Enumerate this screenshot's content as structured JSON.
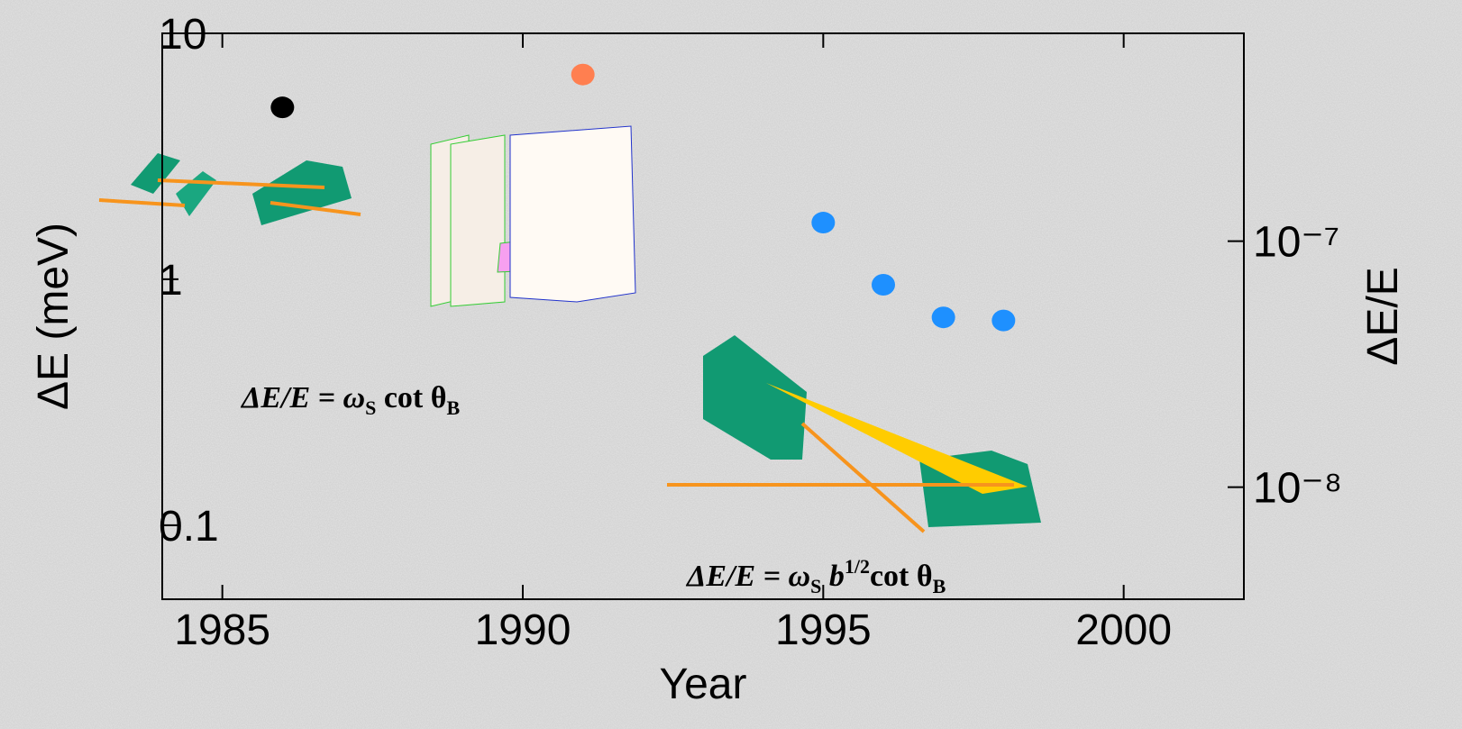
{
  "chart_data": {
    "type": "scatter",
    "x_label": "Year",
    "y_label": "ΔE (meV)",
    "y2_label": "ΔE/E",
    "x": [
      1986,
      1991,
      1995,
      1996,
      1997,
      1998
    ],
    "series": [
      {
        "color": "#000000",
        "x": [
          1986
        ],
        "values": [
          5
        ]
      },
      {
        "color": "#ff7f50",
        "x": [
          1991
        ],
        "values": [
          6.8
        ]
      },
      {
        "color": "#1e90ff",
        "x": [
          1995,
          1996,
          1997,
          1998
        ],
        "values": [
          1.7,
          0.95,
          0.7,
          0.68
        ]
      }
    ],
    "xlim": [
      1984,
      2002
    ],
    "xticks": [
      1985,
      1990,
      1995,
      2000
    ],
    "ylim": [
      0.05,
      10
    ],
    "yticks": [
      0.1,
      1,
      10
    ],
    "log_y": true,
    "y2lim": [
      3.5e-09,
      7e-07
    ],
    "y2ticks": [
      {
        "value": 1e-07,
        "label": "10⁻⁷"
      },
      {
        "value": 1e-08,
        "label": "10⁻⁸"
      }
    ],
    "log_y2": true,
    "annotations": [
      {
        "parts": [
          "ΔE/E = ω",
          "S",
          " cot θ",
          "B"
        ]
      },
      {
        "parts": [
          "ΔE/E = ω",
          "S",
          " b",
          "1/2",
          "cot θ",
          "B"
        ]
      }
    ]
  }
}
